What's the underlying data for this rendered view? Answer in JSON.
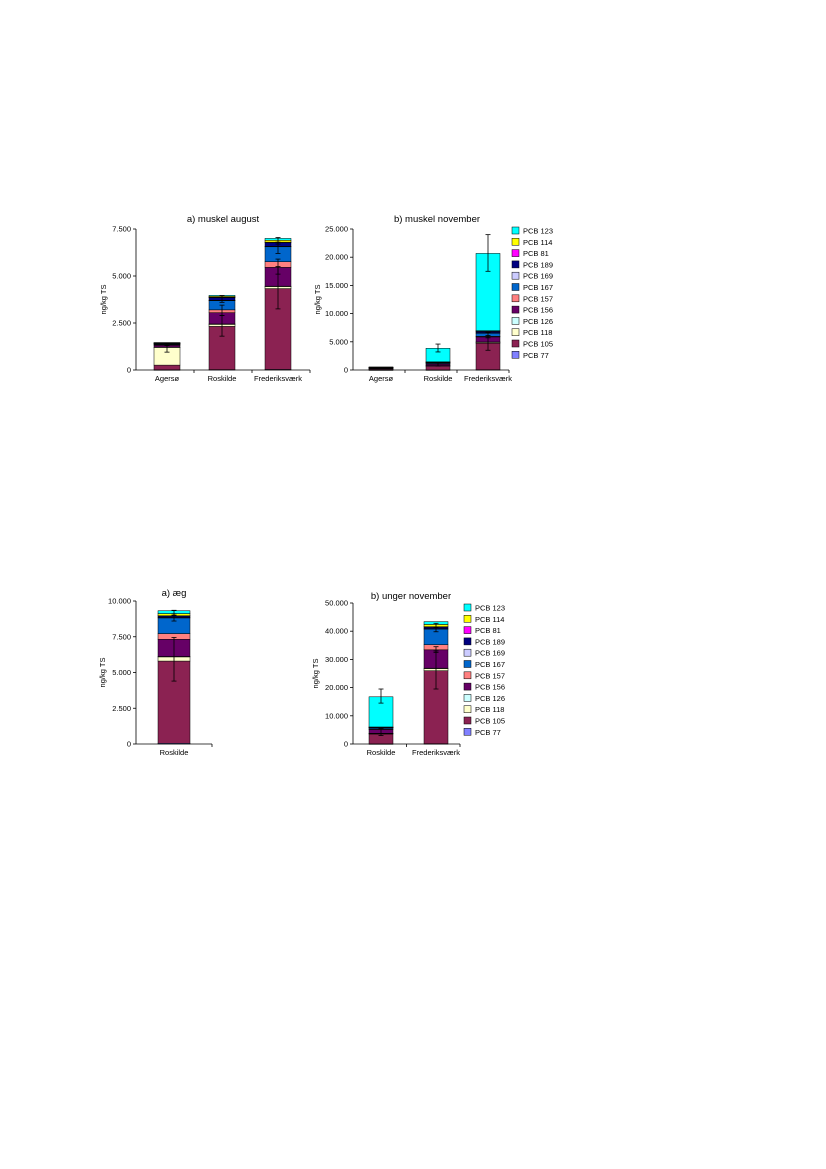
{
  "legend": {
    "entries": [
      "PCB 123",
      "PCB 114",
      "PCB 81",
      "PCB 189",
      "PCB 169",
      "PCB 167",
      "PCB 157",
      "PCB 156",
      "PCB 126",
      "PCB 118",
      "PCB 105",
      "PCB 77"
    ]
  },
  "colors": {
    "PCB 77": "#8080ff",
    "PCB 105": "#8b2252",
    "PCB 118": "#ffffcc",
    "PCB 126": "#ccffff",
    "PCB 156": "#660066",
    "PCB 157": "#ff8080",
    "PCB 167": "#0066cc",
    "PCB 169": "#ccccff",
    "PCB 189": "#000080",
    "PCB 81": "#ff00ff",
    "PCB 114": "#ffff00",
    "PCB 123": "#00ffff"
  },
  "chart_data": [
    {
      "type": "bar",
      "stacked": true,
      "title": "a) muskel august",
      "ylabel": "ng/kg TS",
      "ylim": [
        0,
        7500
      ],
      "yticks": [
        "0",
        "2.500",
        "5.000",
        "7.500"
      ],
      "categories": [
        "Agersø",
        "Roskilde",
        "Frederiksværk"
      ],
      "series": [
        {
          "name": "PCB 77",
          "values": [
            10,
            20,
            30
          ]
        },
        {
          "name": "PCB 105",
          "values": [
            250,
            2300,
            4300
          ]
        },
        {
          "name": "PCB 118",
          "values": [
            950,
            120,
            120
          ]
        },
        {
          "name": "PCB 126",
          "values": [
            10,
            10,
            10
          ]
        },
        {
          "name": "PCB 156",
          "values": [
            100,
            600,
            1000
          ]
        },
        {
          "name": "PCB 157",
          "values": [
            20,
            150,
            300
          ]
        },
        {
          "name": "PCB 167",
          "values": [
            50,
            500,
            800
          ]
        },
        {
          "name": "PCB 169",
          "values": [
            5,
            10,
            20
          ]
        },
        {
          "name": "PCB 189",
          "values": [
            40,
            150,
            200
          ]
        },
        {
          "name": "PCB 81",
          "values": [
            5,
            10,
            20
          ]
        },
        {
          "name": "PCB 114",
          "values": [
            10,
            50,
            100
          ]
        },
        {
          "name": "PCB 123",
          "values": [
            10,
            50,
            100
          ]
        }
      ],
      "error_bars": [
        {
          "category": "Agersø",
          "center": 1200,
          "low": 950,
          "high": 1420
        },
        {
          "category": "Agersø",
          "center": 1350,
          "low": 1300,
          "high": 1420
        },
        {
          "category": "Roskilde",
          "center": 2350,
          "low": 1800,
          "high": 2900
        },
        {
          "category": "Roskilde",
          "center": 3200,
          "low": 2900,
          "high": 3450
        },
        {
          "category": "Roskilde",
          "center": 3800,
          "low": 3600,
          "high": 3950
        },
        {
          "category": "Frederiksværk",
          "center": 4400,
          "low": 3250,
          "high": 5500
        },
        {
          "category": "Frederiksværk",
          "center": 5500,
          "low": 5100,
          "high": 5900
        },
        {
          "category": "Frederiksværk",
          "center": 6500,
          "low": 6200,
          "high": 6800
        },
        {
          "category": "Frederiksværk",
          "center": 6850,
          "low": 6700,
          "high": 7050
        }
      ]
    },
    {
      "type": "bar",
      "stacked": true,
      "title": "b) muskel november",
      "ylabel": "ng/kg TS",
      "ylim": [
        0,
        25000
      ],
      "yticks": [
        "0",
        "5.000",
        "10.000",
        "15.000",
        "20.000",
        "25.000"
      ],
      "categories": [
        "Agersø",
        "Roskilde",
        "Frederiksværk"
      ],
      "series": [
        {
          "name": "PCB 77",
          "values": [
            10,
            20,
            50
          ]
        },
        {
          "name": "PCB 105",
          "values": [
            200,
            700,
            4700
          ]
        },
        {
          "name": "PCB 118",
          "values": [
            20,
            50,
            200
          ]
        },
        {
          "name": "PCB 126",
          "values": [
            10,
            10,
            20
          ]
        },
        {
          "name": "PCB 156",
          "values": [
            150,
            300,
            900
          ]
        },
        {
          "name": "PCB 157",
          "values": [
            10,
            30,
            100
          ]
        },
        {
          "name": "PCB 167",
          "values": [
            60,
            200,
            600
          ]
        },
        {
          "name": "PCB 169",
          "values": [
            5,
            10,
            30
          ]
        },
        {
          "name": "PCB 189",
          "values": [
            30,
            100,
            300
          ]
        },
        {
          "name": "PCB 81",
          "values": [
            5,
            10,
            20
          ]
        },
        {
          "name": "PCB 114",
          "values": [
            10,
            20,
            50
          ]
        },
        {
          "name": "PCB 123",
          "values": [
            20,
            2400,
            13700
          ]
        }
      ],
      "error_bars": [
        {
          "category": "Roskilde",
          "center": 3850,
          "low": 3200,
          "high": 4600
        },
        {
          "category": "Roskilde",
          "center": 1000,
          "low": 700,
          "high": 1300
        },
        {
          "category": "Frederiksværk",
          "center": 20650,
          "low": 17500,
          "high": 24000
        },
        {
          "category": "Frederiksværk",
          "center": 4800,
          "low": 3500,
          "high": 6100
        },
        {
          "category": "Frederiksværk",
          "center": 6200,
          "low": 5700,
          "high": 6700
        }
      ]
    },
    {
      "type": "bar",
      "stacked": true,
      "title": "a) æg",
      "ylabel": "ng/kg TS",
      "ylim": [
        0,
        10000
      ],
      "yticks": [
        "0",
        "2.500",
        "5.000",
        "7.500",
        "10.000"
      ],
      "categories": [
        "Roskilde"
      ],
      "series": [
        {
          "name": "PCB 77",
          "values": [
            50
          ]
        },
        {
          "name": "PCB 105",
          "values": [
            5750
          ]
        },
        {
          "name": "PCB 118",
          "values": [
            300
          ]
        },
        {
          "name": "PCB 126",
          "values": [
            20
          ]
        },
        {
          "name": "PCB 156",
          "values": [
            1200
          ]
        },
        {
          "name": "PCB 157",
          "values": [
            400
          ]
        },
        {
          "name": "PCB 167",
          "values": [
            1100
          ]
        },
        {
          "name": "PCB 169",
          "values": [
            30
          ]
        },
        {
          "name": "PCB 189",
          "values": [
            100
          ]
        },
        {
          "name": "PCB 81",
          "values": [
            20
          ]
        },
        {
          "name": "PCB 114",
          "values": [
            150
          ]
        },
        {
          "name": "PCB 123",
          "values": [
            200
          ]
        }
      ],
      "error_bars": [
        {
          "category": "Roskilde",
          "center": 5900,
          "low": 4400,
          "high": 7450
        },
        {
          "category": "Roskilde",
          "center": 8850,
          "low": 8600,
          "high": 9100
        },
        {
          "category": "Roskilde",
          "center": 9200,
          "low": 9000,
          "high": 9350
        }
      ]
    },
    {
      "type": "bar",
      "stacked": true,
      "title": "b) unger november",
      "ylabel": "ng/kg TS",
      "ylim": [
        0,
        50000
      ],
      "yticks": [
        "0",
        "10.000",
        "20.000",
        "30.000",
        "40.000",
        "50.000"
      ],
      "categories": [
        "Roskilde",
        "Frederiksværk"
      ],
      "series": [
        {
          "name": "PCB 77",
          "values": [
            50,
            100
          ]
        },
        {
          "name": "PCB 105",
          "values": [
            3500,
            25900
          ]
        },
        {
          "name": "PCB 118",
          "values": [
            200,
            800
          ]
        },
        {
          "name": "PCB 126",
          "values": [
            50,
            100
          ]
        },
        {
          "name": "PCB 156",
          "values": [
            1300,
            6500
          ]
        },
        {
          "name": "PCB 157",
          "values": [
            200,
            1800
          ]
        },
        {
          "name": "PCB 167",
          "values": [
            500,
            5600
          ]
        },
        {
          "name": "PCB 169",
          "values": [
            20,
            100
          ]
        },
        {
          "name": "PCB 189",
          "values": [
            150,
            600
          ]
        },
        {
          "name": "PCB 81",
          "values": [
            20,
            100
          ]
        },
        {
          "name": "PCB 114",
          "values": [
            50,
            800
          ]
        },
        {
          "name": "PCB 123",
          "values": [
            10700,
            1000
          ]
        }
      ],
      "error_bars": [
        {
          "category": "Roskilde",
          "center": 16700,
          "low": 14500,
          "high": 19500
        },
        {
          "category": "Roskilde",
          "center": 4300,
          "low": 3000,
          "high": 5500
        },
        {
          "category": "Frederiksværk",
          "center": 26000,
          "low": 19500,
          "high": 33000
        },
        {
          "category": "Frederiksværk",
          "center": 33500,
          "low": 32500,
          "high": 34500
        },
        {
          "category": "Frederiksværk",
          "center": 40500,
          "low": 39800,
          "high": 41300
        },
        {
          "category": "Frederiksværk",
          "center": 42000,
          "low": 41500,
          "high": 42800
        }
      ]
    }
  ]
}
